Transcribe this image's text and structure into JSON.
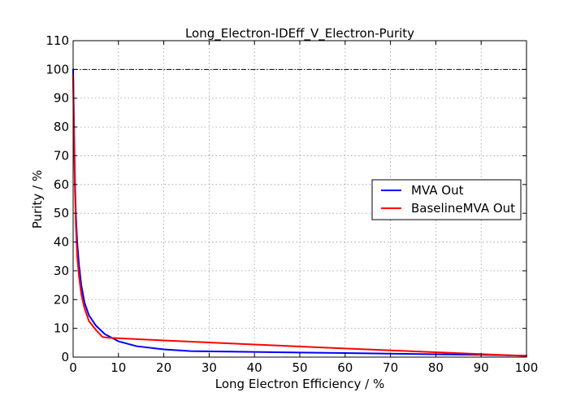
{
  "chart_data": {
    "type": "line",
    "title": "Long_Electron-IDEff_V_Electron-Purity",
    "xlabel": "Long Electron Efficiency / %",
    "ylabel": "Purity / %",
    "xlim": [
      0,
      100
    ],
    "ylim": [
      0,
      110
    ],
    "xticks": [
      "0",
      "10",
      "20",
      "30",
      "40",
      "50",
      "60",
      "70",
      "80",
      "90",
      "100"
    ],
    "yticks": [
      "0",
      "10",
      "20",
      "30",
      "40",
      "50",
      "60",
      "70",
      "80",
      "90",
      "100",
      "110"
    ],
    "grid": true,
    "legend_position": "right",
    "reference_line": {
      "y": 100,
      "style": "dashdot",
      "color": "#000000"
    },
    "series": [
      {
        "name": "MVA Out",
        "color": "#0000ff",
        "points": [
          [
            0,
            100
          ],
          [
            0.2,
            80
          ],
          [
            0.4,
            62
          ],
          [
            0.6,
            50
          ],
          [
            0.9,
            40
          ],
          [
            1.3,
            32
          ],
          [
            1.8,
            25
          ],
          [
            2.5,
            19
          ],
          [
            3.5,
            14.5
          ],
          [
            5,
            11
          ],
          [
            7,
            8
          ],
          [
            10,
            5.5
          ],
          [
            14,
            3.8
          ],
          [
            20,
            2.7
          ],
          [
            26,
            2.1
          ],
          [
            35,
            1.9
          ],
          [
            50,
            1.6
          ],
          [
            60,
            1.4
          ],
          [
            70,
            1.2
          ],
          [
            80,
            1.0
          ],
          [
            90,
            0.8
          ],
          [
            100,
            0.5
          ]
        ]
      },
      {
        "name": "BaselineMVA Out",
        "color": "#ff0000",
        "points": [
          [
            0,
            98
          ],
          [
            0.2,
            75
          ],
          [
            0.4,
            58
          ],
          [
            0.6,
            46
          ],
          [
            0.9,
            35
          ],
          [
            1.3,
            28
          ],
          [
            1.8,
            22
          ],
          [
            2.5,
            17
          ],
          [
            3.5,
            12.5
          ],
          [
            5,
            9.5
          ],
          [
            6.5,
            7
          ],
          [
            8,
            6.7
          ],
          [
            20,
            5.8
          ],
          [
            40,
            4.4
          ],
          [
            60,
            3.0
          ],
          [
            80,
            1.7
          ],
          [
            100,
            0.4
          ]
        ]
      }
    ]
  }
}
